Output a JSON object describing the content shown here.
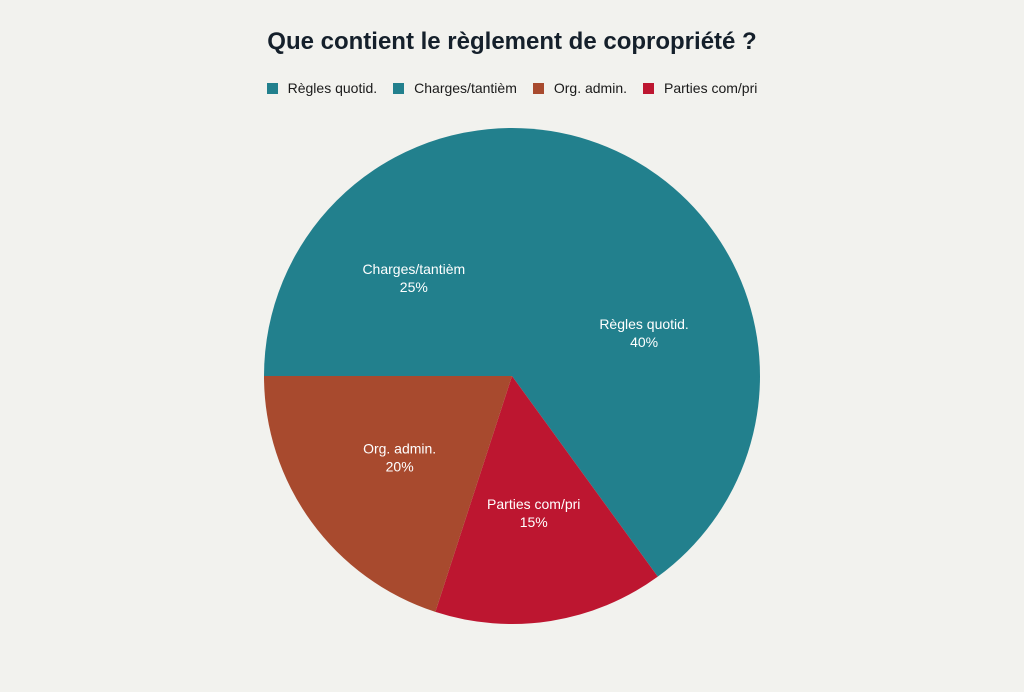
{
  "chart_data": {
    "type": "pie",
    "title": "Que contient le règlement de copropriété ?",
    "legend_position": "top",
    "slices": [
      {
        "label": "Règles quotid.",
        "value": 40,
        "display": "40%",
        "color": "#22808d"
      },
      {
        "label": "Charges/tantièm",
        "value": 25,
        "display": "25%",
        "color": "#22808d"
      },
      {
        "label": "Org. admin.",
        "value": 20,
        "display": "20%",
        "color": "#a84a2e"
      },
      {
        "label": "Parties com/pri",
        "value": 15,
        "display": "15%",
        "color": "#bd1630"
      }
    ]
  }
}
